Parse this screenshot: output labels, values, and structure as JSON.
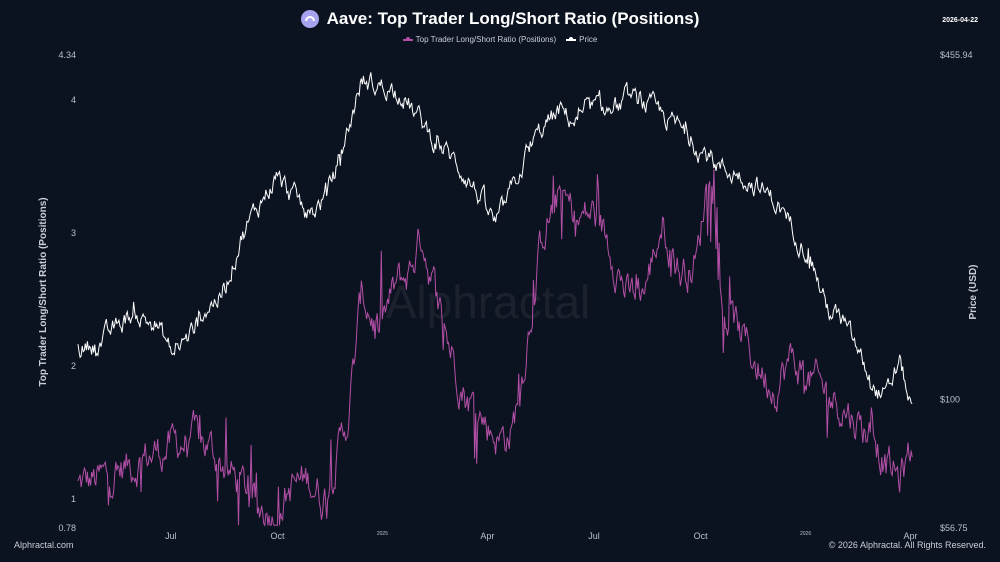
{
  "header": {
    "title": "Aave: Top Trader Long/Short Ratio (Positions)",
    "date": "2026-04-22"
  },
  "footer": {
    "left": "Alphractal.com",
    "right": "© 2026 Alphractal. All Rights Reserved."
  },
  "watermark": "Alphractal",
  "colors": {
    "ratio": "#b24fa6",
    "price": "#ffffff",
    "background": "#0c1320"
  },
  "chart_data": {
    "type": "line",
    "legend_position": "top-center",
    "grid": false,
    "x_tick_labels": [
      {
        "label": "Jul",
        "t": 0.108
      },
      {
        "label": "Oct",
        "t": 0.232
      },
      {
        "label": "2025",
        "t": 0.354,
        "small": true
      },
      {
        "label": "Apr",
        "t": 0.476
      },
      {
        "label": "Jul",
        "t": 0.6
      },
      {
        "label": "Oct",
        "t": 0.724
      },
      {
        "label": "2026",
        "t": 0.846,
        "small": true
      },
      {
        "label": "Apr",
        "t": 0.968
      }
    ],
    "left_axis": {
      "title": "Top Trader Long/Short Ratio (Positions)",
      "min": 0.78,
      "max": 4.34,
      "ticks": [
        "4.34",
        "4",
        "3",
        "2",
        "1",
        "0.78"
      ]
    },
    "right_axis": {
      "title": "Price (USD)",
      "scale": "log",
      "min": 56.75,
      "max": 455.94,
      "ticks": [
        "$455.94",
        "$100",
        "$56.75"
      ]
    },
    "series": [
      {
        "name": "Top Trader Long/Short Ratio (Positions)",
        "axis": "left",
        "keypoints": [
          [
            0.0,
            1.1
          ],
          [
            0.03,
            1.15
          ],
          [
            0.06,
            1.25
          ],
          [
            0.09,
            1.35
          ],
          [
            0.11,
            1.4
          ],
          [
            0.13,
            1.45
          ],
          [
            0.15,
            1.4
          ],
          [
            0.17,
            1.25
          ],
          [
            0.19,
            1.1
          ],
          [
            0.21,
            0.95
          ],
          [
            0.23,
            0.9
          ],
          [
            0.25,
            1.1
          ],
          [
            0.27,
            1.15
          ],
          [
            0.285,
            1.0
          ],
          [
            0.3,
            1.3
          ],
          [
            0.315,
            1.65
          ],
          [
            0.33,
            2.55
          ],
          [
            0.35,
            2.25
          ],
          [
            0.37,
            2.6
          ],
          [
            0.385,
            2.7
          ],
          [
            0.4,
            3.0
          ],
          [
            0.41,
            2.7
          ],
          [
            0.43,
            2.2
          ],
          [
            0.45,
            1.8
          ],
          [
            0.47,
            1.6
          ],
          [
            0.49,
            1.45
          ],
          [
            0.505,
            1.5
          ],
          [
            0.52,
            2.1
          ],
          [
            0.54,
            3.0
          ],
          [
            0.56,
            3.3
          ],
          [
            0.58,
            3.1
          ],
          [
            0.6,
            3.15
          ],
          [
            0.62,
            2.9
          ],
          [
            0.64,
            2.5
          ],
          [
            0.66,
            2.6
          ],
          [
            0.68,
            3.1
          ],
          [
            0.7,
            2.7
          ],
          [
            0.72,
            2.8
          ],
          [
            0.735,
            3.6
          ],
          [
            0.75,
            2.4
          ],
          [
            0.77,
            2.25
          ],
          [
            0.79,
            2.0
          ],
          [
            0.81,
            1.85
          ],
          [
            0.83,
            2.05
          ],
          [
            0.85,
            1.9
          ],
          [
            0.87,
            1.8
          ],
          [
            0.89,
            1.7
          ],
          [
            0.91,
            1.55
          ],
          [
            0.925,
            1.5
          ],
          [
            0.94,
            1.25
          ],
          [
            0.955,
            1.15
          ],
          [
            0.97,
            1.35
          ]
        ]
      },
      {
        "name": "Price",
        "axis": "right",
        "keypoints": [
          [
            0.0,
            125
          ],
          [
            0.03,
            130
          ],
          [
            0.06,
            145
          ],
          [
            0.09,
            140
          ],
          [
            0.11,
            122
          ],
          [
            0.13,
            132
          ],
          [
            0.15,
            150
          ],
          [
            0.17,
            160
          ],
          [
            0.19,
            205
          ],
          [
            0.21,
            235
          ],
          [
            0.23,
            265
          ],
          [
            0.25,
            245
          ],
          [
            0.27,
            225
          ],
          [
            0.285,
            240
          ],
          [
            0.3,
            275
          ],
          [
            0.315,
            330
          ],
          [
            0.33,
            410
          ],
          [
            0.345,
            400
          ],
          [
            0.36,
            395
          ],
          [
            0.375,
            390
          ],
          [
            0.39,
            355
          ],
          [
            0.41,
            320
          ],
          [
            0.43,
            295
          ],
          [
            0.45,
            270
          ],
          [
            0.47,
            240
          ],
          [
            0.485,
            215
          ],
          [
            0.5,
            240
          ],
          [
            0.52,
            290
          ],
          [
            0.54,
            330
          ],
          [
            0.56,
            355
          ],
          [
            0.58,
            340
          ],
          [
            0.6,
            360
          ],
          [
            0.62,
            355
          ],
          [
            0.64,
            375
          ],
          [
            0.66,
            365
          ],
          [
            0.68,
            350
          ],
          [
            0.7,
            330
          ],
          [
            0.72,
            305
          ],
          [
            0.735,
            290
          ],
          [
            0.75,
            275
          ],
          [
            0.77,
            270
          ],
          [
            0.79,
            255
          ],
          [
            0.81,
            240
          ],
          [
            0.83,
            215
          ],
          [
            0.85,
            190
          ],
          [
            0.87,
            150
          ],
          [
            0.89,
            140
          ],
          [
            0.91,
            120
          ],
          [
            0.925,
            105
          ],
          [
            0.94,
            100
          ],
          [
            0.955,
            118
          ],
          [
            0.97,
            95
          ]
        ]
      }
    ]
  }
}
